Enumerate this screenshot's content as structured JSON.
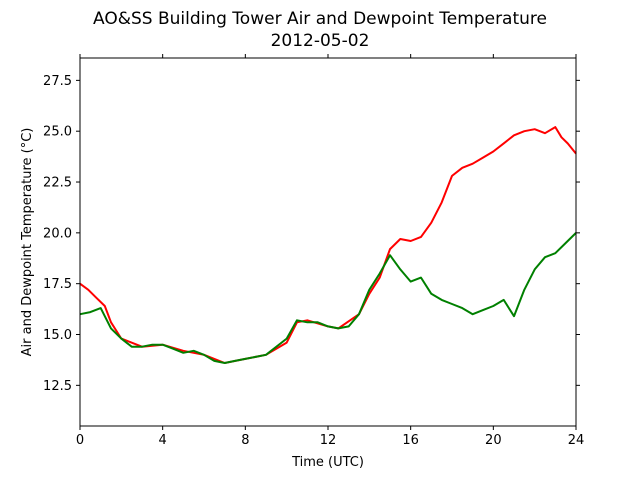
{
  "chart_data": {
    "type": "line",
    "title": "AO&SS Building Tower Air and Dewpoint Temperature",
    "subtitle": "2012-05-02",
    "xlabel": "Time (UTC)",
    "ylabel": "Air and Dewpoint Temperature (°C)",
    "xlim": [
      0,
      24
    ],
    "ylim": [
      10.5,
      28.6
    ],
    "xticks": [
      0,
      4,
      8,
      12,
      16,
      20,
      24
    ],
    "yticks": [
      12.5,
      15.0,
      17.5,
      20.0,
      22.5,
      25.0,
      27.5
    ],
    "xtick_labels": [
      "0",
      "4",
      "8",
      "12",
      "16",
      "20",
      "24"
    ],
    "ytick_labels": [
      "12.5",
      "15.0",
      "17.5",
      "20.0",
      "22.5",
      "25.0",
      "27.5"
    ],
    "grid": false,
    "series": [
      {
        "color": "#ff0000",
        "x": [
          0,
          0.4,
          0.8,
          1.2,
          1.5,
          2.0,
          3.0,
          4.0,
          5.0,
          6.0,
          7.0,
          8.0,
          9.0,
          10.0,
          10.5,
          11.0,
          12.0,
          12.5,
          13.5,
          14.0,
          14.5,
          15.0,
          15.5,
          16.0,
          16.5,
          17.0,
          17.5,
          18.0,
          18.5,
          19.0,
          19.5,
          20.0,
          20.5,
          21.0,
          21.5,
          22.0,
          22.5,
          23.0,
          23.3,
          23.6,
          24.0
        ],
        "y": [
          17.5,
          17.2,
          16.8,
          16.4,
          15.6,
          14.8,
          14.4,
          14.5,
          14.2,
          14.0,
          13.6,
          13.8,
          14.0,
          14.6,
          15.6,
          15.7,
          15.4,
          15.3,
          16.0,
          17.0,
          17.8,
          19.2,
          19.7,
          19.6,
          19.8,
          20.5,
          21.5,
          22.8,
          23.2,
          23.4,
          23.7,
          24.0,
          24.4,
          24.8,
          25.0,
          25.1,
          24.9,
          25.2,
          24.7,
          24.4,
          23.9
        ]
      },
      {
        "color": "#008000",
        "x": [
          0,
          0.5,
          1.0,
          1.5,
          2.0,
          2.5,
          3.0,
          3.5,
          4.0,
          4.5,
          5.0,
          5.5,
          6.0,
          6.5,
          7.0,
          7.5,
          8.0,
          9.0,
          10.0,
          10.5,
          11.0,
          11.5,
          12.0,
          12.5,
          13.0,
          13.5,
          14.0,
          14.5,
          15.0,
          15.5,
          16.0,
          16.5,
          17.0,
          17.5,
          18.0,
          18.5,
          19.0,
          19.5,
          20.0,
          20.5,
          21.0,
          21.5,
          22.0,
          22.5,
          23.0,
          23.5,
          24.0
        ],
        "y": [
          16.0,
          16.1,
          16.3,
          15.3,
          14.8,
          14.4,
          14.4,
          14.5,
          14.5,
          14.3,
          14.1,
          14.2,
          14.0,
          13.7,
          13.6,
          13.7,
          13.8,
          14.0,
          14.8,
          15.7,
          15.6,
          15.6,
          15.4,
          15.3,
          15.4,
          16.0,
          17.2,
          18.0,
          18.9,
          18.2,
          17.6,
          17.8,
          17.0,
          16.7,
          16.5,
          16.3,
          16.0,
          16.2,
          16.4,
          16.7,
          15.9,
          17.2,
          18.2,
          18.8,
          19.0,
          19.5,
          20.0
        ]
      }
    ]
  }
}
